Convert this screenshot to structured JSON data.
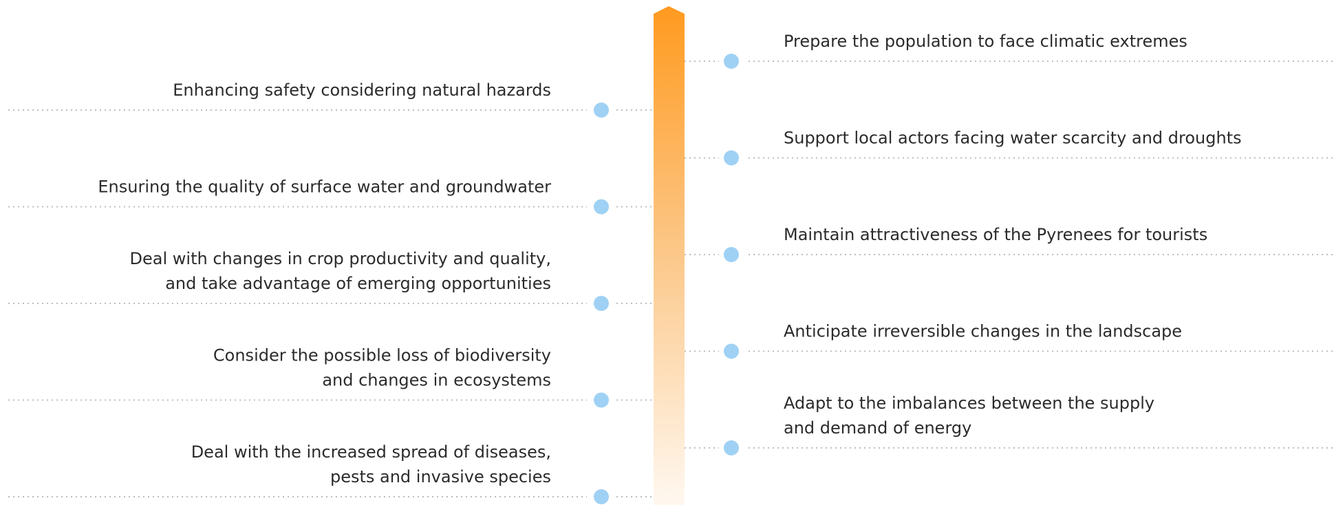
{
  "left": [
    {
      "lines": [
        "Enhancing safety considering natural hazards"
      ]
    },
    {
      "lines": [
        "Ensuring the quality of surface water and groundwater"
      ]
    },
    {
      "lines": [
        "Deal with changes in crop productivity and quality,",
        "and take advantage of emerging opportunities"
      ]
    },
    {
      "lines": [
        "Consider the possible loss of biodiversity",
        "and changes in ecosystems"
      ]
    },
    {
      "lines": [
        "Deal with the increased spread of diseases,",
        "pests and invasive species"
      ]
    }
  ],
  "right": [
    {
      "lines": [
        "Prepare the population to face climatic extremes"
      ]
    },
    {
      "lines": [
        "Support local actors facing water scarcity and droughts"
      ]
    },
    {
      "lines": [
        "Maintain attractiveness of the Pyrenees for tourists"
      ]
    },
    {
      "lines": [
        "Anticipate irreversible changes in the landscape"
      ]
    },
    {
      "lines": [
        "Adapt to the imbalances between the supply",
        " and demand of energy"
      ]
    }
  ]
}
